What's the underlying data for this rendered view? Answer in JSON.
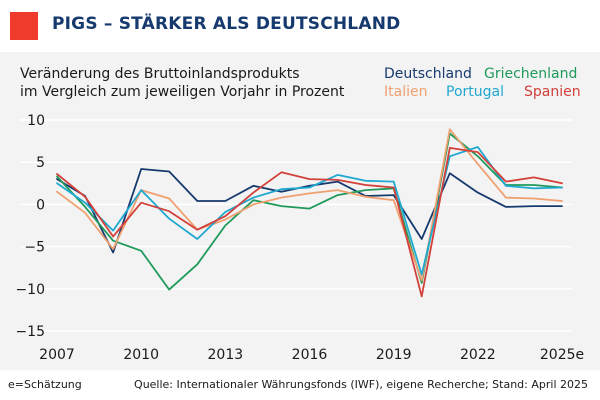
{
  "header": {
    "title": "PIGS – STÄRKER ALS DEUTSCHLAND",
    "accent_color": "#ee3b2b",
    "title_color": "#163a6e"
  },
  "footer": {
    "note": "e=Schätzung",
    "source": "Quelle: Internationaler Währungsfonds (IWF), eigene Recherche; Stand: April 2025"
  },
  "chart_data": {
    "type": "line",
    "title_lines": [
      "Veränderung des Bruttoinlandsprodukts",
      "im Vergleich zum jeweiligen Vorjahr in Prozent"
    ],
    "x": [
      2007,
      2008,
      2009,
      2010,
      2011,
      2012,
      2013,
      2014,
      2015,
      2016,
      2017,
      2018,
      2019,
      2020,
      2021,
      2022,
      2023,
      2024,
      2025
    ],
    "x_tick_values": [
      2007,
      2010,
      2013,
      2016,
      2019,
      2022,
      2025
    ],
    "x_tick_labels": [
      "2007",
      "2010",
      "2013",
      "2016",
      "2019",
      "2022",
      "2025e"
    ],
    "y_ticks": [
      10,
      5,
      0,
      -5,
      -10,
      -15
    ],
    "ylim": [
      -15,
      10
    ],
    "xlim": [
      2007,
      2025
    ],
    "grid": "horizontal",
    "legend_position": "top-right",
    "series": [
      {
        "name": "Deutschland",
        "color": "#163a6e",
        "values": [
          3.0,
          1.0,
          -5.7,
          4.2,
          3.9,
          0.4,
          0.4,
          2.2,
          1.5,
          2.2,
          2.7,
          1.0,
          1.1,
          -4.1,
          3.7,
          1.4,
          -0.3,
          -0.2,
          -0.2
        ]
      },
      {
        "name": "Griechenland",
        "color": "#1f9a5b",
        "values": [
          3.3,
          -0.3,
          -4.3,
          -5.5,
          -10.1,
          -7.1,
          -2.5,
          0.5,
          -0.2,
          -0.5,
          1.1,
          1.7,
          1.9,
          -9.3,
          8.4,
          5.7,
          2.3,
          2.3,
          2.0
        ]
      },
      {
        "name": "Italien",
        "color": "#f0a070",
        "values": [
          1.5,
          -1.0,
          -5.3,
          1.7,
          0.7,
          -3.0,
          -1.8,
          0.0,
          0.8,
          1.3,
          1.7,
          0.9,
          0.5,
          -9.0,
          8.9,
          4.8,
          0.8,
          0.7,
          0.4
        ]
      },
      {
        "name": "Portugal",
        "color": "#1fa8d0",
        "values": [
          2.5,
          0.2,
          -3.1,
          1.7,
          -1.7,
          -4.1,
          -0.9,
          0.8,
          1.8,
          2.0,
          3.5,
          2.8,
          2.7,
          -8.3,
          5.7,
          6.8,
          2.2,
          1.9,
          2.0
        ]
      },
      {
        "name": "Spanien",
        "color": "#d2413b",
        "values": [
          3.6,
          0.9,
          -3.8,
          0.2,
          -0.8,
          -3.0,
          -1.4,
          1.4,
          3.8,
          3.0,
          2.9,
          2.3,
          2.0,
          -10.9,
          6.7,
          6.2,
          2.7,
          3.2,
          2.5
        ]
      }
    ]
  }
}
